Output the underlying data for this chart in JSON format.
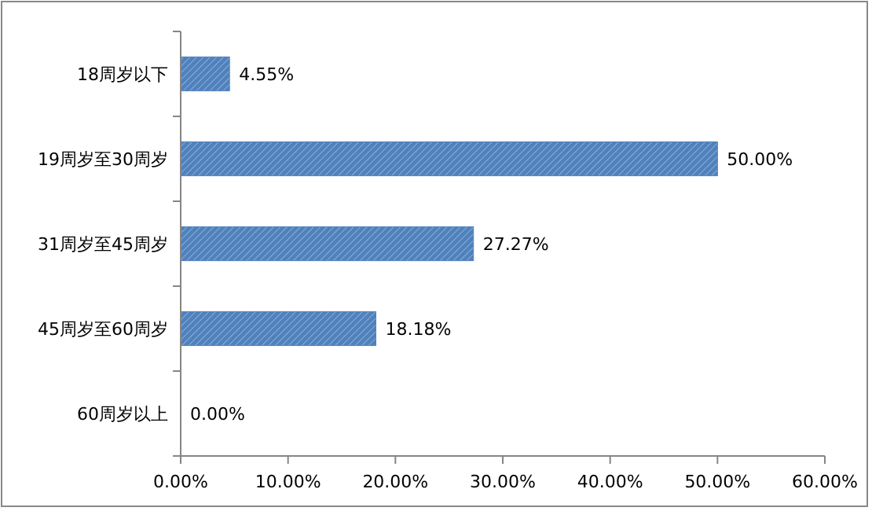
{
  "chart_data": {
    "type": "bar",
    "orientation": "horizontal",
    "categories": [
      "18周岁以下",
      "19周岁至30周岁",
      "31周岁至45周岁",
      "45周岁至60周岁",
      "60周岁以上"
    ],
    "values": [
      4.55,
      50.0,
      27.27,
      18.18,
      0.0
    ],
    "value_labels": [
      "4.55%",
      "50.00%",
      "27.27%",
      "18.18%",
      "0.00%"
    ],
    "color": "#4f81bd",
    "xlim": [
      0,
      60
    ],
    "xticks": [
      {
        "value": 0,
        "label": "0.00%"
      },
      {
        "value": 10,
        "label": "10.00%"
      },
      {
        "value": 20,
        "label": "20.00%"
      },
      {
        "value": 30,
        "label": "30.00%"
      },
      {
        "value": 40,
        "label": "40.00%"
      },
      {
        "value": 50,
        "label": "50.00%"
      },
      {
        "value": 60,
        "label": "60.00%"
      }
    ],
    "grid": false
  }
}
